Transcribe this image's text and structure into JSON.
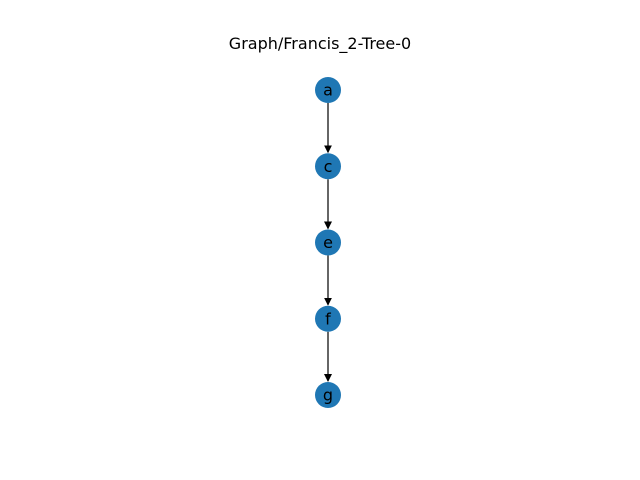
{
  "title": "Graph/Francis_2-Tree-0",
  "colors": {
    "node_fill": "#1f77b4",
    "edge": "#000000",
    "label": "#000000"
  },
  "nodes": [
    {
      "id": "a",
      "label": "a"
    },
    {
      "id": "c",
      "label": "c"
    },
    {
      "id": "e",
      "label": "e"
    },
    {
      "id": "f",
      "label": "f"
    },
    {
      "id": "g",
      "label": "g"
    }
  ],
  "edges": [
    {
      "from": "a",
      "to": "c"
    },
    {
      "from": "c",
      "to": "e"
    },
    {
      "from": "e",
      "to": "f"
    },
    {
      "from": "f",
      "to": "g"
    }
  ]
}
